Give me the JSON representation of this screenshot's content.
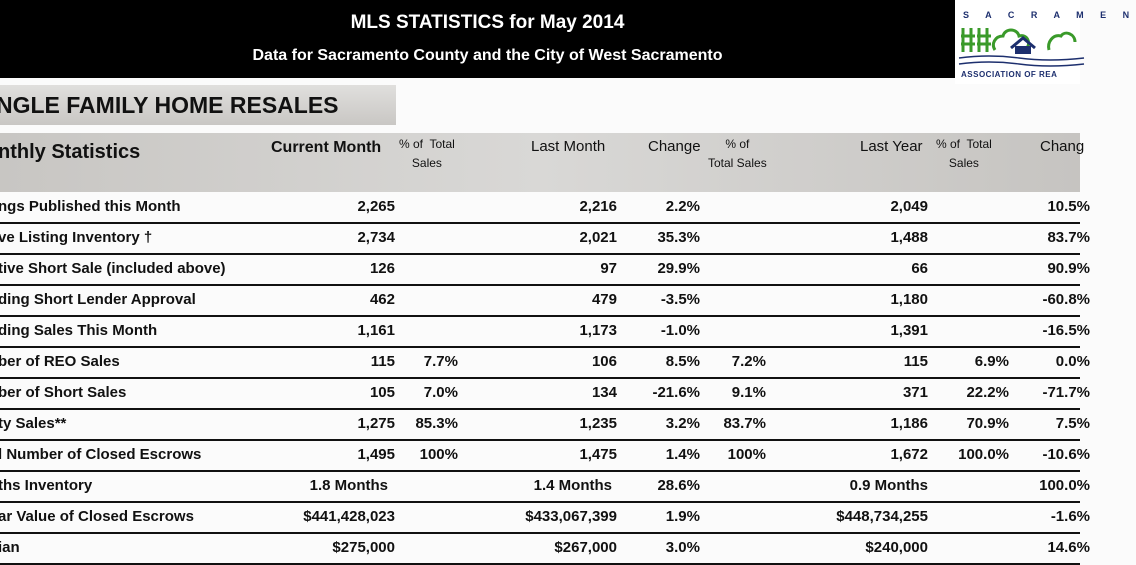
{
  "header": {
    "title": "MLS STATISTICS for May 2014",
    "subtitle": "Data for Sacramento County and the City of West Sacramento"
  },
  "logo": {
    "top": "S A C R A M E N",
    "bottom": "ASSOCIATION OF REA"
  },
  "section_title": "NGLE FAMILY HOME RESALES",
  "columns": {
    "label": "nthly Statistics",
    "current": "Current Month",
    "pct1": "% of  Total\nSales",
    "last_month": "Last Month",
    "change": "Change",
    "pct2": "% of\nTotal Sales",
    "last_year": "Last Year",
    "pct3": "% of  Total\nSales",
    "change2": "Chang"
  },
  "rows": [
    {
      "label": "ngs Published this Month",
      "cur": "2,265",
      "p1": "",
      "lm": "2,216",
      "ch": "2.2%",
      "p2": "",
      "ly": "2,049",
      "p3": "",
      "ch2": "10.5%"
    },
    {
      "label": "ve Listing Inventory †",
      "cur": "2,734",
      "p1": "",
      "lm": "2,021",
      "ch": "35.3%",
      "p2": "",
      "ly": "1,488",
      "p3": "",
      "ch2": "83.7%"
    },
    {
      "label": "tive Short Sale (included above)",
      "cur": "126",
      "p1": "",
      "lm": "97",
      "ch": "29.9%",
      "p2": "",
      "ly": "66",
      "p3": "",
      "ch2": "90.9%"
    },
    {
      "label": "ding Short Lender Approval",
      "cur": "462",
      "p1": "",
      "lm": "479",
      "ch": "-3.5%",
      "p2": "",
      "ly": "1,180",
      "p3": "",
      "ch2": "-60.8%"
    },
    {
      "label": "ding Sales This Month",
      "cur": "1,161",
      "p1": "",
      "lm": "1,173",
      "ch": "-1.0%",
      "p2": "",
      "ly": "1,391",
      "p3": "",
      "ch2": "-16.5%"
    },
    {
      "label": "ber of REO Sales",
      "cur": "115",
      "p1": "7.7%",
      "lm": "106",
      "ch": "8.5%",
      "p2": "7.2%",
      "ly": "115",
      "p3": "6.9%",
      "ch2": "0.0%"
    },
    {
      "label": "ber of Short Sales",
      "cur": "105",
      "p1": "7.0%",
      "lm": "134",
      "ch": "-21.6%",
      "p2": "9.1%",
      "ly": "371",
      "p3": "22.2%",
      "ch2": "-71.7%"
    },
    {
      "label": "ty Sales**",
      "cur": "1,275",
      "p1": "85.3%",
      "lm": "1,235",
      "ch": "3.2%",
      "p2": "83.7%",
      "ly": "1,186",
      "p3": "70.9%",
      "ch2": "7.5%"
    },
    {
      "label": "l Number of Closed Escrows",
      "cur": "1,495",
      "p1": "100%",
      "lm": "1,475",
      "ch": "1.4%",
      "p2": "100%",
      "ly": "1,672",
      "p3": "100.0%",
      "ch2": "-10.6%"
    },
    {
      "label": "ths Inventory",
      "cur": "1.8 Months",
      "p1": "",
      "lm": "1.4 Months",
      "ch": "28.6%",
      "p2": "",
      "ly": "0.9 Months",
      "p3": "",
      "ch2": "100.0%"
    },
    {
      "label": "ar Value of Closed Escrows",
      "cur": "$441,428,023",
      "p1": "",
      "lm": "$433,067,399",
      "ch": "1.9%",
      "p2": "",
      "ly": "$448,734,255",
      "p3": "",
      "ch2": "-1.6%"
    },
    {
      "label": "ian",
      "cur": "$275,000",
      "p1": "",
      "lm": "$267,000",
      "ch": "3.0%",
      "p2": "",
      "ly": "$240,000",
      "p3": "",
      "ch2": "14.6%"
    }
  ]
}
